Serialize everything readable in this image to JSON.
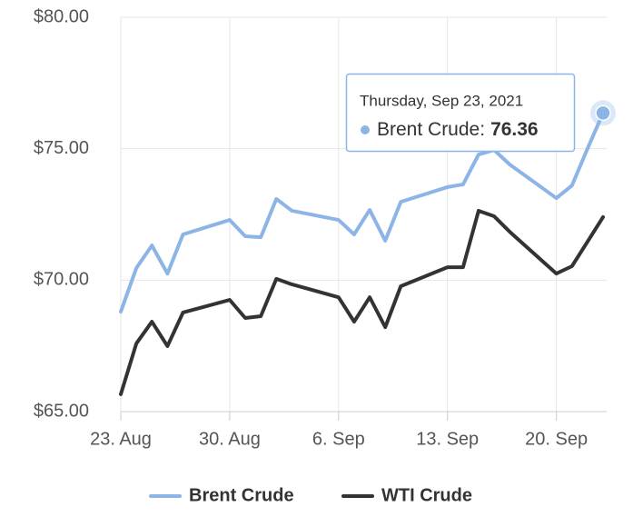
{
  "chart_data": {
    "type": "line",
    "x": [
      "2021-08-23",
      "2021-08-24",
      "2021-08-25",
      "2021-08-26",
      "2021-08-27",
      "2021-08-30",
      "2021-08-31",
      "2021-09-01",
      "2021-09-02",
      "2021-09-03",
      "2021-09-06",
      "2021-09-07",
      "2021-09-08",
      "2021-09-09",
      "2021-09-10",
      "2021-09-13",
      "2021-09-14",
      "2021-09-15",
      "2021-09-16",
      "2021-09-17",
      "2021-09-20",
      "2021-09-21",
      "2021-09-22",
      "2021-09-23"
    ],
    "series": [
      {
        "name": "Brent Crude",
        "color": "#8cb4e6",
        "values": [
          68.8,
          70.46,
          71.32,
          70.25,
          71.74,
          72.29,
          71.67,
          71.63,
          73.09,
          72.64,
          72.29,
          71.74,
          72.67,
          71.5,
          72.98,
          73.54,
          73.64,
          74.78,
          74.95,
          74.4,
          73.12,
          73.6,
          75.0,
          76.36
        ]
      },
      {
        "name": "WTI Crude",
        "color": "#333333",
        "values": [
          65.66,
          67.59,
          68.42,
          67.49,
          68.77,
          69.25,
          68.56,
          68.63,
          70.05,
          69.84,
          69.35,
          68.42,
          69.35,
          68.21,
          69.77,
          70.49,
          70.49,
          72.64,
          72.43,
          71.84,
          70.25,
          70.53,
          71.46,
          72.4
        ]
      }
    ],
    "xlim": [
      "2021-08-23",
      "2021-09-23"
    ],
    "xticks": [
      {
        "value": "2021-08-23",
        "label": "23. Aug"
      },
      {
        "value": "2021-08-30",
        "label": "30. Aug"
      },
      {
        "value": "2021-09-06",
        "label": "6. Sep"
      },
      {
        "value": "2021-09-13",
        "label": "13. Sep"
      },
      {
        "value": "2021-09-20",
        "label": "20. Sep"
      }
    ],
    "ylim": [
      65,
      80
    ],
    "yticks": [
      {
        "value": 65,
        "label": "$65.00"
      },
      {
        "value": 70,
        "label": "$70.00"
      },
      {
        "value": 75,
        "label": "$75.00"
      },
      {
        "value": 80,
        "label": "$80.00"
      }
    ],
    "grid": true,
    "legend": "bottom",
    "tooltip": {
      "title": "Thursday, Sep 23, 2021",
      "series_label": "Brent Crude:"
    }
  }
}
